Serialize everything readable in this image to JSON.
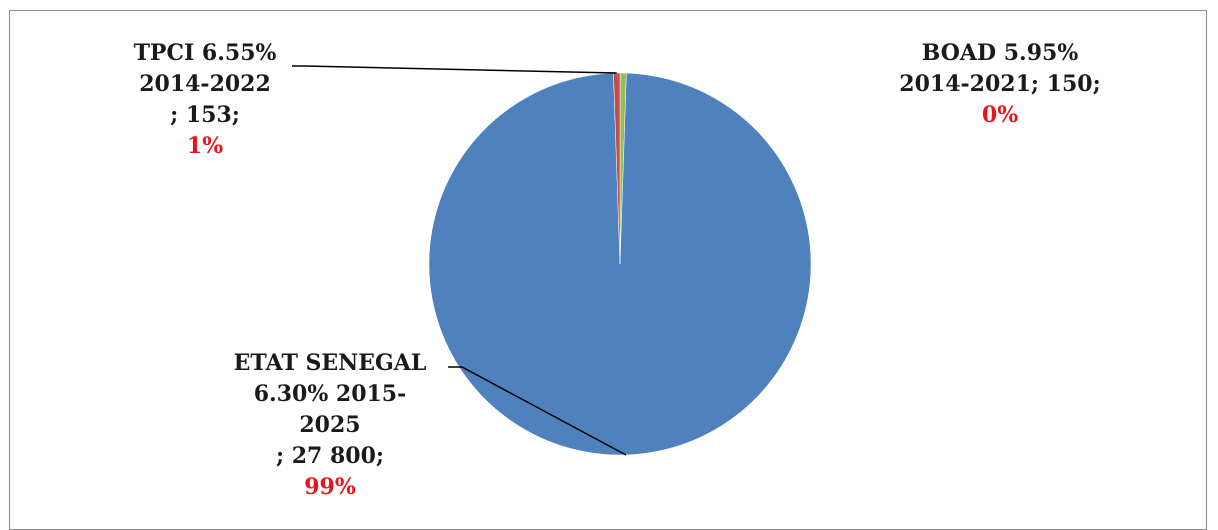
{
  "chart_data": {
    "type": "pie",
    "slices": [
      {
        "label_lines": [
          "ETAT SENEGAL",
          "6.30% 2015-",
          "2025",
          "; 27 800;"
        ],
        "value": 27800,
        "percent": "99%",
        "color": "#4f81bd"
      },
      {
        "label_lines": [
          "TPCI 6.55%",
          "2014-2022",
          "; 153;"
        ],
        "value": 153,
        "percent": "1%",
        "color": "#c0504d"
      },
      {
        "label_lines": [
          "BOAD 5.95%",
          "2014-2021; 150;"
        ],
        "value": 150,
        "percent": "0%",
        "color": "#9bbb59"
      }
    ],
    "legend": "none",
    "percent_color": "#e8141b"
  }
}
